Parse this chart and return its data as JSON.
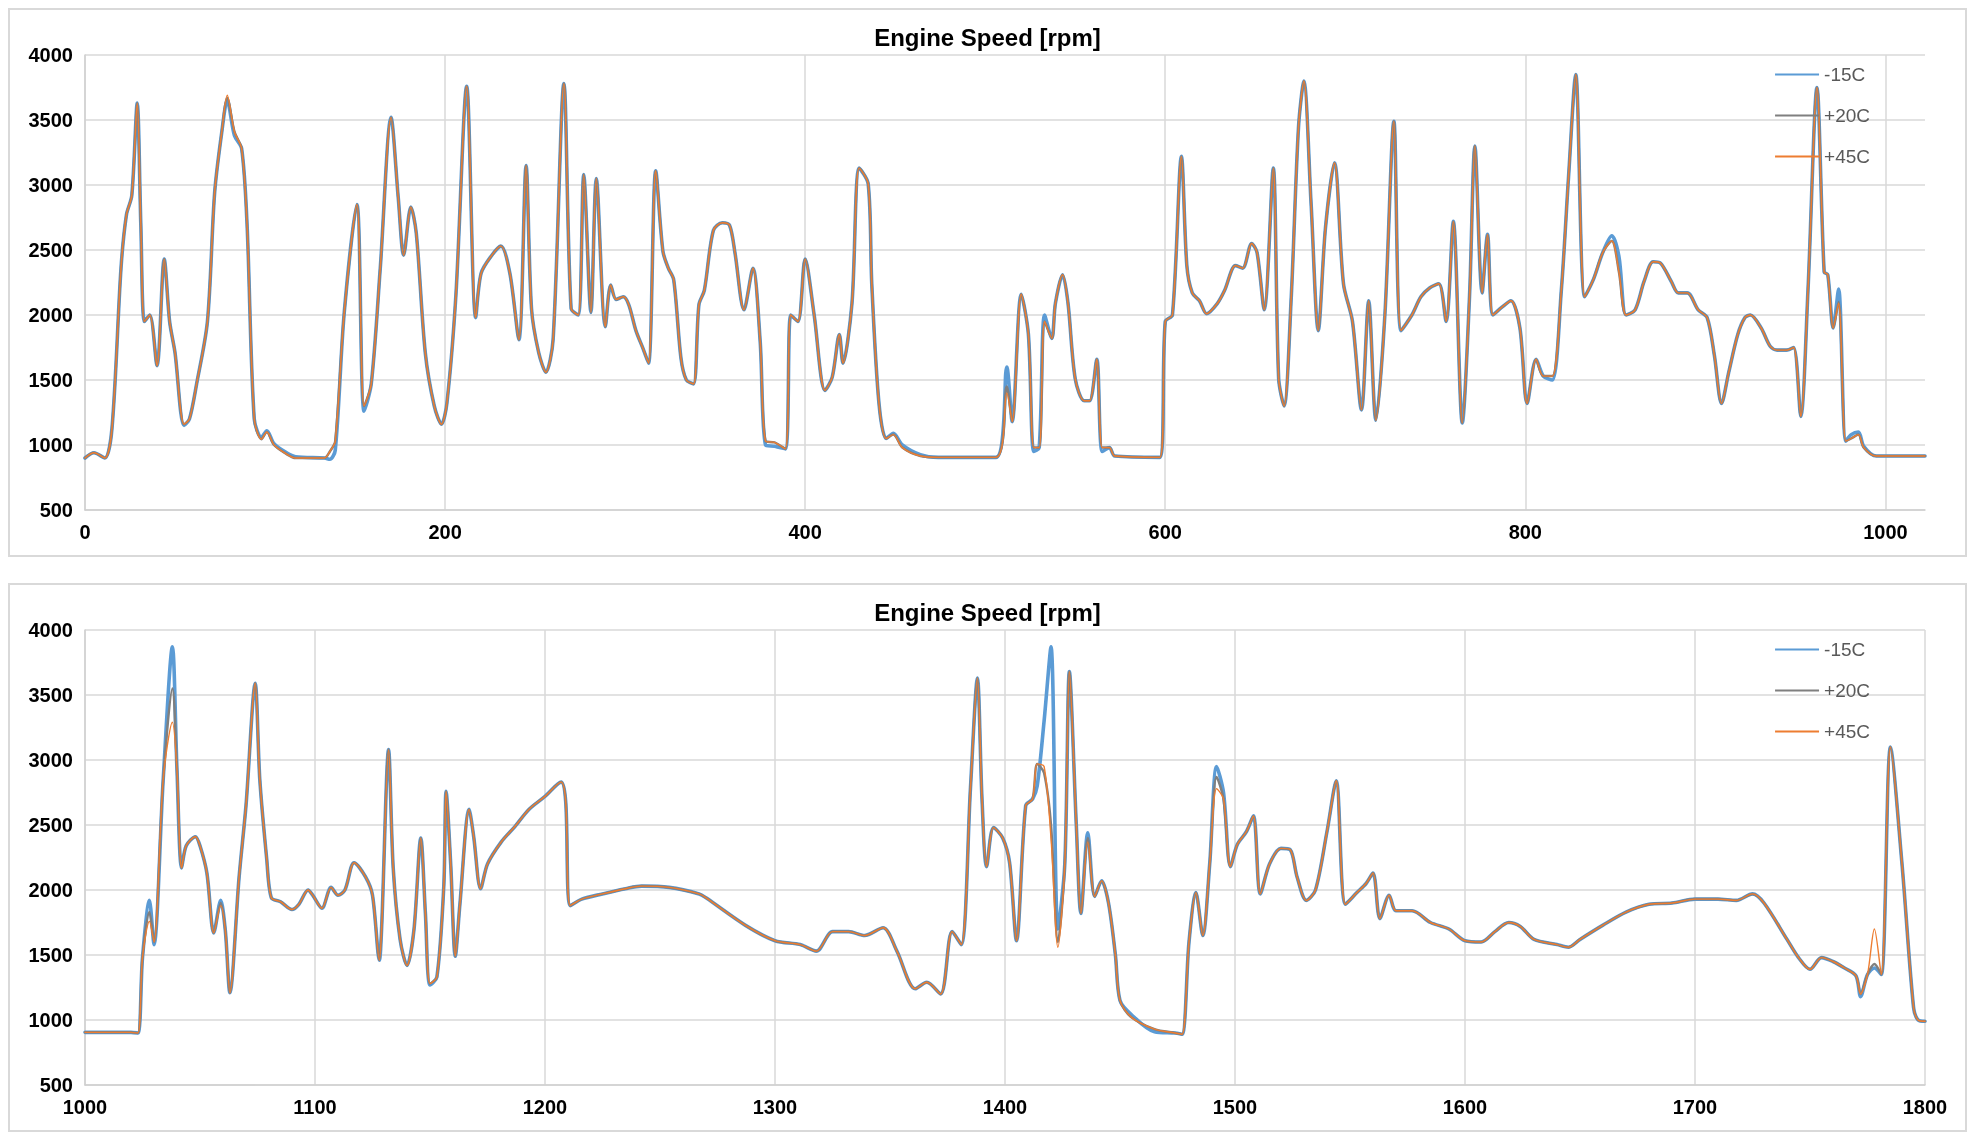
{
  "chart_data": [
    {
      "type": "line",
      "title": "Engine Speed [rpm]",
      "grid": true,
      "legend": "top right",
      "xlim": [
        0,
        1022
      ],
      "xticks": [
        0,
        200,
        400,
        600,
        800,
        1000
      ],
      "ylim": [
        500,
        4000
      ],
      "yticks": [
        500,
        1000,
        1500,
        2000,
        2500,
        3000,
        3500,
        4000
      ],
      "x": [
        0,
        5,
        11,
        15,
        20,
        23,
        26,
        29,
        31,
        33,
        36,
        40,
        44,
        47,
        50,
        55,
        58,
        62,
        68,
        72,
        76,
        79,
        83,
        87,
        90,
        94,
        98,
        101,
        105,
        112,
        117,
        133,
        136,
        139,
        144,
        151,
        155,
        159,
        164,
        170,
        174,
        177,
        181,
        184,
        189,
        194,
        198,
        201,
        206,
        212,
        217,
        220,
        226,
        231,
        236,
        241,
        245,
        248,
        252,
        256,
        260,
        266,
        270,
        274,
        277,
        281,
        284,
        289,
        292,
        295,
        299,
        302,
        306,
        310,
        313,
        317,
        321,
        324,
        327,
        331,
        334,
        338,
        341,
        344,
        349,
        354,
        358,
        361,
        366,
        371,
        375,
        378,
        383,
        389,
        392,
        396,
        400,
        405,
        411,
        415,
        419,
        421,
        426,
        430,
        435,
        437,
        441,
        445,
        449,
        454,
        464,
        474,
        506,
        512,
        515,
        520,
        524,
        527,
        530,
        533,
        537,
        539,
        543,
        546,
        550,
        555,
        558,
        562,
        565,
        569,
        572,
        597,
        600,
        604,
        609,
        612,
        615,
        619,
        623,
        629,
        633,
        639,
        643,
        648,
        651,
        655,
        660,
        663,
        666,
        670,
        674,
        677,
        681,
        685,
        689,
        694,
        699,
        704,
        709,
        713,
        717,
        722,
        727,
        731,
        737,
        742,
        747,
        752,
        756,
        760,
        765,
        769,
        772,
        776,
        779,
        782,
        787,
        792,
        797,
        801,
        806,
        810,
        815,
        820,
        824,
        828,
        833,
        838,
        843,
        848,
        852,
        856,
        861,
        866,
        871,
        875,
        881,
        885,
        890,
        896,
        901,
        905,
        909,
        913,
        918,
        922,
        925,
        931,
        936,
        940,
        945,
        949,
        953,
        957,
        962,
        966,
        968,
        971,
        974,
        978,
        981,
        985,
        988,
        995,
        1022
      ],
      "series": [
        {
          "name": "-15C",
          "color": "#5b9bd5",
          "values": [
            900,
            940,
            900,
            1130,
            2360,
            2770,
            2920,
            3630,
            2700,
            1950,
            2000,
            1610,
            2430,
            1950,
            1710,
            1150,
            1200,
            1470,
            1950,
            2940,
            3410,
            3650,
            3380,
            3280,
            2700,
            1200,
            1060,
            1110,
            1010,
            940,
            910,
            900,
            890,
            960,
            2020,
            2850,
            1260,
            1470,
            2360,
            3520,
            2900,
            2460,
            2830,
            2630,
            1710,
            1300,
            1160,
            1320,
            2150,
            3760,
            1980,
            2320,
            2460,
            2530,
            2320,
            1810,
            3150,
            2050,
            1710,
            1560,
            1810,
            3780,
            2050,
            2000,
            3080,
            2020,
            3050,
            1910,
            2230,
            2120,
            2140,
            2080,
            1880,
            1740,
            1630,
            3110,
            2490,
            2360,
            2270,
            1670,
            1500,
            1470,
            2080,
            2190,
            2650,
            2710,
            2690,
            2480,
            2040,
            2360,
            1800,
            1000,
            990,
            970,
            2000,
            1950,
            2430,
            2000,
            1420,
            1520,
            1850,
            1630,
            2090,
            3130,
            3010,
            2240,
            1320,
            1050,
            1090,
            1000,
            925,
            905,
            905,
            1600,
            1180,
            2160,
            1850,
            950,
            980,
            2000,
            1820,
            2090,
            2310,
            2090,
            1510,
            1340,
            1340,
            1660,
            950,
            980,
            915,
            905,
            1950,
            2000,
            3220,
            2380,
            2170,
            2110,
            2010,
            2090,
            2190,
            2380,
            2360,
            2550,
            2480,
            2040,
            3130,
            1510,
            1300,
            2140,
            3440,
            3800,
            2860,
            1880,
            2670,
            3170,
            2240,
            1950,
            1270,
            2110,
            1190,
            2000,
            3490,
            1880,
            2000,
            2140,
            2210,
            2240,
            1950,
            2720,
            1170,
            2140,
            3300,
            2170,
            2620,
            2000,
            2060,
            2110,
            1900,
            1320,
            1660,
            1530,
            1500,
            2190,
            3060,
            3850,
            2140,
            2280,
            2480,
            2610,
            2450,
            2000,
            2040,
            2260,
            2410,
            2400,
            2260,
            2170,
            2170,
            2040,
            1980,
            1690,
            1320,
            1560,
            1850,
            1980,
            2000,
            1900,
            1760,
            1730,
            1730,
            1750,
            1220,
            2190,
            3750,
            2330,
            2310,
            1900,
            2200,
            1030,
            1080,
            1100,
            990,
            915,
            915
          ]
        },
        {
          "name": "+20C",
          "color": "#7f7f7f",
          "values": [
            900,
            940,
            900,
            1130,
            2360,
            2770,
            2920,
            3630,
            2700,
            1950,
            2000,
            1610,
            2430,
            1950,
            1710,
            1160,
            1200,
            1470,
            1950,
            2940,
            3410,
            3670,
            3410,
            3280,
            2700,
            1200,
            1045,
            1100,
            1000,
            930,
            900,
            900,
            950,
            1030,
            2020,
            2850,
            1300,
            1470,
            2360,
            3520,
            2900,
            2460,
            2830,
            2630,
            1710,
            1300,
            1160,
            1320,
            2150,
            3760,
            1980,
            2320,
            2460,
            2530,
            2320,
            1810,
            3150,
            2050,
            1710,
            1560,
            1810,
            3780,
            2050,
            2000,
            3080,
            2020,
            3050,
            1910,
            2230,
            2120,
            2140,
            2080,
            1880,
            1740,
            1630,
            3110,
            2490,
            2360,
            2270,
            1670,
            1500,
            1470,
            2080,
            2190,
            2650,
            2710,
            2690,
            2480,
            2040,
            2360,
            1800,
            1030,
            1020,
            970,
            2000,
            1950,
            2430,
            2000,
            1420,
            1520,
            1850,
            1630,
            2090,
            3130,
            3010,
            2240,
            1320,
            1050,
            1080,
            980,
            915,
            905,
            905,
            1450,
            1180,
            2160,
            1850,
            980,
            980,
            1950,
            1820,
            2090,
            2310,
            2090,
            1510,
            1340,
            1340,
            1660,
            980,
            980,
            915,
            905,
            1950,
            2000,
            3220,
            2380,
            2170,
            2110,
            2010,
            2090,
            2190,
            2380,
            2360,
            2550,
            2480,
            2040,
            3130,
            1510,
            1300,
            2140,
            3440,
            3800,
            2860,
            1880,
            2670,
            3170,
            2240,
            1950,
            1270,
            2110,
            1190,
            2000,
            3490,
            1880,
            2000,
            2140,
            2210,
            2240,
            1950,
            2720,
            1170,
            2140,
            3300,
            2170,
            2620,
            2000,
            2060,
            2110,
            1900,
            1320,
            1660,
            1530,
            1530,
            2190,
            3060,
            3850,
            2140,
            2280,
            2480,
            2570,
            2330,
            2000,
            2040,
            2260,
            2410,
            2400,
            2260,
            2170,
            2170,
            2040,
            1980,
            1690,
            1320,
            1560,
            1850,
            1980,
            2000,
            1900,
            1760,
            1730,
            1730,
            1750,
            1220,
            2190,
            3750,
            2330,
            2310,
            1900,
            2100,
            1030,
            1050,
            1080,
            980,
            915,
            915
          ]
        },
        {
          "name": "+45C",
          "color": "#ed7d31",
          "values": [
            900,
            940,
            900,
            1130,
            2360,
            2770,
            2920,
            3630,
            2700,
            1950,
            2000,
            1610,
            2430,
            1950,
            1710,
            1160,
            1200,
            1470,
            1950,
            2940,
            3410,
            3690,
            3410,
            3280,
            2700,
            1200,
            1045,
            1100,
            1000,
            930,
            900,
            900,
            950,
            1030,
            2020,
            2850,
            1300,
            1470,
            2360,
            3520,
            2900,
            2460,
            2830,
            2630,
            1710,
            1300,
            1160,
            1320,
            2150,
            3760,
            1980,
            2320,
            2460,
            2530,
            2320,
            1810,
            3150,
            2050,
            1710,
            1560,
            1810,
            3780,
            2050,
            2000,
            3080,
            2020,
            3050,
            1910,
            2230,
            2120,
            2140,
            2080,
            1880,
            1740,
            1630,
            3110,
            2490,
            2360,
            2270,
            1670,
            1500,
            1470,
            2080,
            2190,
            2650,
            2710,
            2690,
            2480,
            2040,
            2360,
            1800,
            1030,
            1020,
            970,
            2000,
            1950,
            2430,
            2000,
            1420,
            1520,
            1850,
            1630,
            2090,
            3130,
            3010,
            2240,
            1320,
            1050,
            1080,
            980,
            915,
            905,
            905,
            1400,
            1180,
            2160,
            1850,
            980,
            980,
            1950,
            1820,
            2090,
            2310,
            2090,
            1510,
            1340,
            1340,
            1660,
            980,
            980,
            915,
            905,
            1950,
            2000,
            3220,
            2380,
            2170,
            2110,
            2010,
            2090,
            2190,
            2380,
            2360,
            2550,
            2480,
            2040,
            3130,
            1510,
            1300,
            2140,
            3440,
            3800,
            2860,
            1880,
            2670,
            3170,
            2240,
            1950,
            1270,
            2110,
            1190,
            2000,
            3490,
            1880,
            2000,
            2140,
            2210,
            2240,
            1950,
            2720,
            1170,
            2140,
            3300,
            2170,
            2620,
            2000,
            2060,
            2110,
            1900,
            1320,
            1660,
            1530,
            1530,
            2190,
            3060,
            3850,
            2140,
            2280,
            2480,
            2570,
            2330,
            2000,
            2040,
            2260,
            2410,
            2400,
            2260,
            2170,
            2170,
            2040,
            1980,
            1690,
            1320,
            1560,
            1850,
            1980,
            2000,
            1900,
            1760,
            1730,
            1730,
            1750,
            1220,
            2190,
            3750,
            2330,
            2310,
            1900,
            2090,
            1030,
            1050,
            1080,
            980,
            915,
            915
          ]
        }
      ]
    },
    {
      "type": "line",
      "title": "Engine Speed [rpm]",
      "grid": true,
      "legend": "top right",
      "xlim": [
        1000,
        1800
      ],
      "xticks": [
        1000,
        1100,
        1200,
        1300,
        1400,
        1500,
        1600,
        1700,
        1800
      ],
      "ylim": [
        500,
        4000
      ],
      "yticks": [
        500,
        1000,
        1500,
        2000,
        2500,
        3000,
        3500,
        4000
      ],
      "x": [
        1000,
        1020,
        1023,
        1025,
        1028,
        1030,
        1034,
        1038,
        1040,
        1042,
        1044,
        1048,
        1050,
        1053,
        1056,
        1059,
        1061,
        1063,
        1067,
        1070,
        1074,
        1076,
        1079,
        1081,
        1085,
        1090,
        1093,
        1097,
        1099,
        1103,
        1107,
        1110,
        1113,
        1117,
        1122,
        1125,
        1128,
        1129,
        1132,
        1134,
        1137,
        1140,
        1143,
        1146,
        1148,
        1150,
        1153,
        1156,
        1157,
        1159,
        1161,
        1163,
        1167,
        1169,
        1172,
        1175,
        1181,
        1187,
        1193,
        1200,
        1207,
        1209,
        1211,
        1216,
        1225,
        1235,
        1242,
        1254,
        1267,
        1270,
        1287,
        1300,
        1311,
        1318,
        1325,
        1332,
        1339,
        1347,
        1353,
        1361,
        1366,
        1372,
        1377,
        1381,
        1385,
        1388,
        1390,
        1392,
        1395,
        1399,
        1402,
        1405,
        1409,
        1412,
        1414,
        1417,
        1420,
        1423,
        1426,
        1428,
        1431,
        1433,
        1436,
        1439,
        1442,
        1445,
        1448,
        1450,
        1455,
        1465,
        1474,
        1477,
        1480,
        1483,
        1486,
        1489,
        1492,
        1495,
        1498,
        1501,
        1505,
        1508,
        1511,
        1515,
        1520,
        1524,
        1527,
        1531,
        1535,
        1540,
        1544,
        1548,
        1553,
        1557,
        1560,
        1563,
        1567,
        1570,
        1577,
        1585,
        1593,
        1600,
        1607,
        1613,
        1619,
        1624,
        1630,
        1640,
        1645,
        1650,
        1660,
        1670,
        1680,
        1690,
        1700,
        1710,
        1718,
        1725,
        1730,
        1740,
        1745,
        1750,
        1755,
        1760,
        1765,
        1770,
        1772,
        1775,
        1778,
        1781,
        1785,
        1790,
        1795,
        1797,
        1800
      ],
      "series": [
        {
          "name": "-15C",
          "color": "#5b9bd5",
          "values": [
            905,
            905,
            900,
            1480,
            1920,
            1580,
            2850,
            3870,
            2920,
            2170,
            2340,
            2410,
            2340,
            2130,
            1670,
            1920,
            1690,
            1210,
            2100,
            2650,
            3590,
            2850,
            2240,
            1940,
            1910,
            1850,
            1890,
            2000,
            1960,
            1860,
            2020,
            1960,
            2000,
            2210,
            2100,
            1960,
            1460,
            1720,
            3080,
            2170,
            1620,
            1420,
            1690,
            2400,
            1820,
            1270,
            1330,
            2030,
            2760,
            2200,
            1490,
            1890,
            2620,
            2410,
            2010,
            2200,
            2370,
            2490,
            2620,
            2720,
            2830,
            2680,
            1880,
            1930,
            1970,
            2010,
            2030,
            2020,
            1970,
            1940,
            1730,
            1610,
            1580,
            1530,
            1680,
            1680,
            1650,
            1710,
            1530,
            1240,
            1290,
            1200,
            1680,
            1580,
            2790,
            3630,
            2700,
            2180,
            2480,
            2400,
            2210,
            1610,
            2650,
            2700,
            2800,
            3300,
            3870,
            1700,
            2200,
            3680,
            2500,
            1820,
            2440,
            1950,
            2070,
            1900,
            1500,
            1150,
            1040,
            910,
            900,
            890,
            1600,
            1980,
            1650,
            2200,
            2950,
            2750,
            2180,
            2350,
            2450,
            2570,
            1970,
            2200,
            2320,
            2310,
            2100,
            1920,
            2000,
            2450,
            2840,
            1890,
            1980,
            2050,
            2130,
            1780,
            1960,
            1840,
            1840,
            1750,
            1700,
            1610,
            1600,
            1680,
            1750,
            1720,
            1620,
            1580,
            1560,
            1620,
            1730,
            1830,
            1890,
            1900,
            1930,
            1930,
            1920,
            1970,
            1900,
            1620,
            1480,
            1390,
            1480,
            1450,
            1400,
            1340,
            1180,
            1350,
            1400,
            1350,
            3100,
            2200,
            1100,
            1000,
            990
          ]
        },
        {
          "name": "+20C",
          "color": "#7f7f7f",
          "values": [
            905,
            905,
            900,
            1480,
            1830,
            1600,
            2850,
            3550,
            2920,
            2170,
            2340,
            2410,
            2340,
            2130,
            1670,
            1900,
            1690,
            1210,
            2100,
            2650,
            3590,
            2850,
            2240,
            1940,
            1910,
            1850,
            1890,
            2000,
            1960,
            1860,
            2020,
            1960,
            2000,
            2210,
            2100,
            1960,
            1460,
            1720,
            3080,
            2170,
            1620,
            1420,
            1690,
            2400,
            1820,
            1280,
            1330,
            2030,
            2760,
            2200,
            1490,
            1890,
            2620,
            2410,
            2010,
            2200,
            2370,
            2490,
            2620,
            2720,
            2830,
            2680,
            1880,
            1930,
            1970,
            2010,
            2030,
            2020,
            1970,
            1940,
            1730,
            1610,
            1580,
            1530,
            1680,
            1680,
            1650,
            1710,
            1530,
            1240,
            1290,
            1200,
            1680,
            1580,
            2790,
            3630,
            2700,
            2180,
            2480,
            2400,
            2210,
            1610,
            2650,
            2700,
            2970,
            2900,
            2500,
            1600,
            2200,
            3680,
            2500,
            1820,
            2400,
            1950,
            2070,
            1900,
            1500,
            1150,
            1020,
            930,
            900,
            890,
            1600,
            1980,
            1650,
            2200,
            2870,
            2700,
            2180,
            2350,
            2450,
            2570,
            1970,
            2200,
            2320,
            2310,
            2100,
            1920,
            2000,
            2450,
            2840,
            1890,
            1980,
            2050,
            2130,
            1780,
            1960,
            1840,
            1840,
            1750,
            1700,
            1610,
            1600,
            1680,
            1750,
            1720,
            1620,
            1580,
            1560,
            1620,
            1730,
            1830,
            1890,
            1900,
            1930,
            1930,
            1920,
            1970,
            1900,
            1620,
            1480,
            1390,
            1480,
            1450,
            1400,
            1340,
            1200,
            1350,
            1430,
            1350,
            3100,
            2200,
            1100,
            1000,
            990
          ]
        },
        {
          "name": "+45C",
          "color": "#ed7d31",
          "values": [
            905,
            905,
            900,
            1480,
            1760,
            1600,
            2850,
            3290,
            2920,
            2170,
            2340,
            2410,
            2340,
            2130,
            1670,
            1880,
            1690,
            1210,
            2100,
            2650,
            3590,
            2850,
            2240,
            1940,
            1910,
            1850,
            1890,
            2000,
            1960,
            1860,
            2020,
            1960,
            2000,
            2210,
            2100,
            1960,
            1460,
            1720,
            3080,
            2170,
            1620,
            1420,
            1690,
            2400,
            1820,
            1280,
            1330,
            2030,
            2760,
            2200,
            1490,
            1890,
            2620,
            2410,
            2010,
            2200,
            2370,
            2490,
            2620,
            2720,
            2830,
            2680,
            1880,
            1930,
            1970,
            2010,
            2030,
            2020,
            1970,
            1940,
            1730,
            1610,
            1580,
            1530,
            1680,
            1680,
            1650,
            1710,
            1530,
            1240,
            1290,
            1200,
            1680,
            1580,
            2790,
            3630,
            2700,
            2180,
            2480,
            2400,
            2210,
            1610,
            2650,
            2700,
            2970,
            2950,
            2400,
            1560,
            2200,
            3680,
            2500,
            1820,
            2370,
            1950,
            2070,
            1900,
            1500,
            1150,
            1020,
            930,
            900,
            890,
            1600,
            1980,
            1650,
            2200,
            2780,
            2700,
            2180,
            2350,
            2450,
            2570,
            1970,
            2200,
            2320,
            2310,
            2100,
            1920,
            2000,
            2450,
            2840,
            1890,
            1980,
            2050,
            2130,
            1780,
            1960,
            1840,
            1840,
            1750,
            1700,
            1610,
            1600,
            1680,
            1750,
            1720,
            1620,
            1580,
            1560,
            1620,
            1730,
            1830,
            1890,
            1900,
            1930,
            1930,
            1920,
            1970,
            1900,
            1620,
            1480,
            1390,
            1480,
            1450,
            1400,
            1340,
            1200,
            1350,
            1700,
            1350,
            3100,
            2200,
            1100,
            1000,
            990
          ]
        }
      ]
    }
  ]
}
